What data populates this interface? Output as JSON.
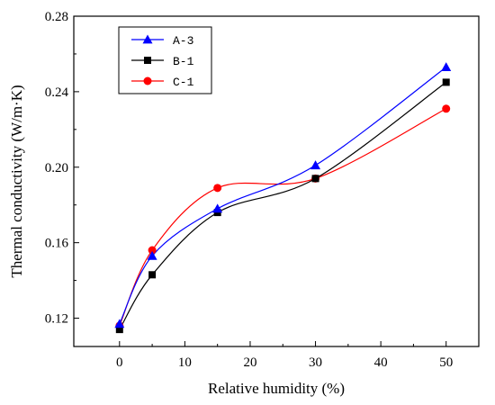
{
  "chart_data": {
    "type": "line",
    "xlabel": "Relative humidity (%)",
    "ylabel": "Thermal conductivity (W/m·K)",
    "xlim": [
      -7,
      55
    ],
    "ylim": [
      0.105,
      0.28
    ],
    "xticks": [
      0,
      10,
      20,
      30,
      40,
      50
    ],
    "yticks": [
      0.12,
      0.16,
      0.2,
      0.24,
      0.28
    ],
    "ytick_labels": [
      "0.12",
      "0.16",
      "0.20",
      "0.24",
      "0.28"
    ],
    "legend_position": "top-left",
    "x": [
      0,
      5,
      15,
      30,
      50
    ],
    "series": [
      {
        "name": "A-3",
        "values": [
          0.117,
          0.153,
          0.178,
          0.201,
          0.253
        ],
        "color": "#0000ff",
        "marker": "triangle"
      },
      {
        "name": "B-1",
        "values": [
          0.114,
          0.143,
          0.176,
          0.194,
          0.245
        ],
        "color": "#000000",
        "marker": "square"
      },
      {
        "name": "C-1",
        "values": [
          0.116,
          0.156,
          0.189,
          0.194,
          0.231
        ],
        "color": "#ff0000",
        "marker": "circle"
      }
    ]
  }
}
